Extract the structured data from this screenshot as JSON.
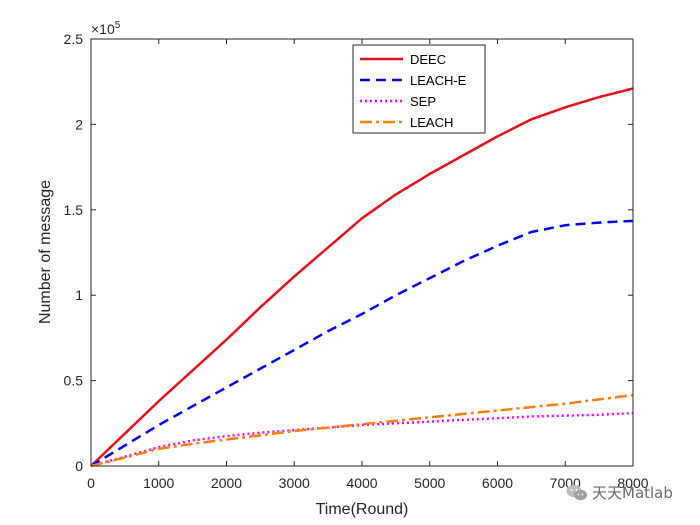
{
  "chart_data": {
    "type": "line",
    "xlabel": "Time(Round)",
    "ylabel": "Number of message",
    "xlim": [
      0,
      8000
    ],
    "ylim": [
      0,
      250000
    ],
    "xticks": [
      0,
      1000,
      2000,
      3000,
      4000,
      5000,
      6000,
      7000,
      8000
    ],
    "yticks": [
      0,
      50000,
      100000,
      150000,
      200000,
      250000
    ],
    "ytick_labels": [
      "0",
      "0.5",
      "1",
      "1.5",
      "2",
      "2.5"
    ],
    "xtick_labels": [
      "0",
      "1000",
      "2000",
      "3000",
      "4000",
      "5000",
      "6000",
      "7000",
      "8000"
    ],
    "y_exponent": "×10",
    "y_exponent_power": "5",
    "grid": false,
    "legend_position": "top-right",
    "series": [
      {
        "name": "DEEC",
        "color": "#e8101a",
        "style": "solid",
        "x": [
          0,
          500,
          1000,
          1500,
          2000,
          2500,
          3000,
          3500,
          4000,
          4500,
          5000,
          5500,
          6000,
          6500,
          7000,
          7500,
          8000
        ],
        "y": [
          0,
          19000,
          38000,
          56000,
          74000,
          93000,
          111000,
          128000,
          145000,
          159000,
          171000,
          182000,
          193000,
          203000,
          210000,
          216000,
          221000
        ]
      },
      {
        "name": "LEACH-E",
        "color": "#0000ff",
        "style": "dashed",
        "x": [
          0,
          500,
          1000,
          1500,
          2000,
          2500,
          3000,
          3500,
          4000,
          4500,
          5000,
          5500,
          6000,
          6500,
          7000,
          7500,
          8000
        ],
        "y": [
          0,
          12000,
          24000,
          35000,
          46000,
          57000,
          68000,
          79000,
          89000,
          100000,
          110000,
          120000,
          129000,
          137000,
          141000,
          142500,
          143500
        ]
      },
      {
        "name": "SEP",
        "color": "#ff00ff",
        "style": "dotted",
        "x": [
          0,
          500,
          1000,
          1500,
          2000,
          2500,
          3000,
          3500,
          4000,
          4500,
          5000,
          5500,
          6000,
          6500,
          7000,
          7500,
          8000
        ],
        "y": [
          0,
          5500,
          11000,
          15000,
          17500,
          19500,
          21000,
          22500,
          24000,
          25000,
          26000,
          27000,
          28000,
          29000,
          29500,
          30000,
          31000
        ]
      },
      {
        "name": "LEACH",
        "color": "#ff7f0e",
        "style": "dashdot",
        "x": [
          0,
          500,
          1000,
          1500,
          2000,
          2500,
          3000,
          3500,
          4000,
          4500,
          5000,
          5500,
          6000,
          6500,
          7000,
          7500,
          8000
        ],
        "y": [
          0,
          5000,
          10000,
          13000,
          15500,
          18000,
          20500,
          22500,
          24500,
          26500,
          28500,
          30500,
          32500,
          34500,
          36500,
          39000,
          41500
        ]
      }
    ]
  },
  "watermark": {
    "icon": "wechat-icon",
    "text": "天天Matlab"
  }
}
